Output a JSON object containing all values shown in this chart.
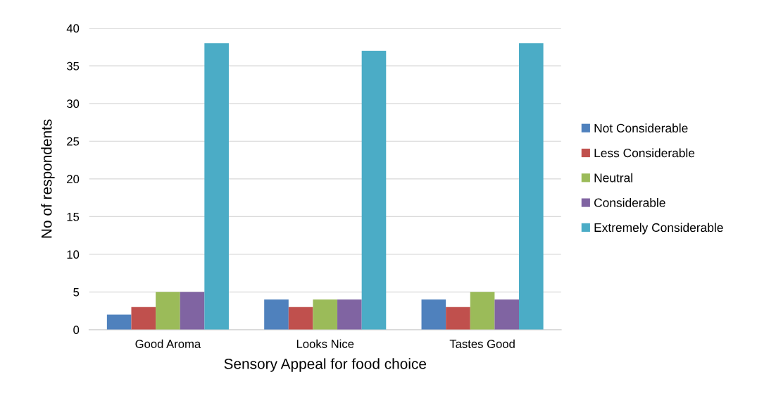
{
  "chart_data": {
    "type": "bar",
    "xlabel": "Sensory Appeal for food choice",
    "ylabel": "No of respondents",
    "categories": [
      "Good Aroma",
      "Looks Nice",
      "Tastes Good"
    ],
    "series": [
      {
        "name": "Not Considerable",
        "color": "#4f81bd",
        "values": [
          2,
          4,
          4
        ]
      },
      {
        "name": "Less Considerable",
        "color": "#c0504d",
        "values": [
          3,
          3,
          3
        ]
      },
      {
        "name": "Neutral",
        "color": "#9bbb59",
        "values": [
          5,
          4,
          5
        ]
      },
      {
        "name": "Considerable",
        "color": "#8064a2",
        "values": [
          5,
          4,
          4
        ]
      },
      {
        "name": "Extremely Considerable",
        "color": "#4bacc6",
        "values": [
          38,
          37,
          38
        ]
      }
    ],
    "ylim": [
      0,
      40
    ],
    "yticks": [
      0,
      5,
      10,
      15,
      20,
      25,
      30,
      35,
      40
    ],
    "grid": "y",
    "legend": "right"
  }
}
